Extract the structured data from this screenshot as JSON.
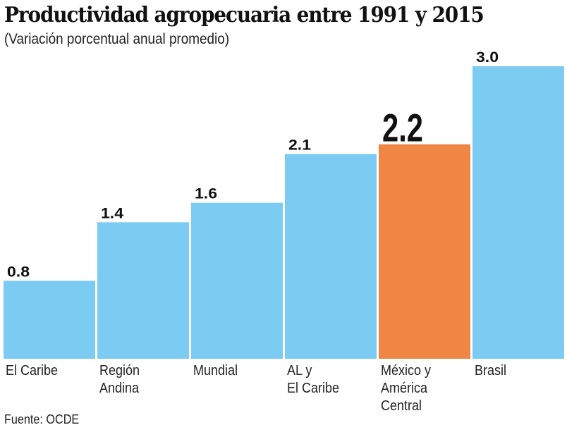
{
  "chart_data": {
    "type": "bar",
    "title": "Productividad agropecuaria entre 1991 y 2015",
    "subtitle": "(Variación porcentual anual promedio)",
    "categories": [
      "El Caribe",
      "Región Andina",
      "Mundial",
      "AL y El Caribe",
      "México y América Central",
      "Brasil"
    ],
    "category_lines": [
      [
        "El Caribe"
      ],
      [
        "Región",
        "Andina"
      ],
      [
        "Mundial"
      ],
      [
        "AL y",
        "El Caribe"
      ],
      [
        "México y",
        "América",
        "Central"
      ],
      [
        "Brasil"
      ]
    ],
    "values": [
      0.8,
      1.4,
      1.6,
      2.1,
      2.2,
      3.0
    ],
    "value_labels": [
      "0.8",
      "1.4",
      "1.6",
      "2.1",
      "2.2",
      "3.0"
    ],
    "highlight_index": 4,
    "colors": {
      "default": "#7ccbf3",
      "highlight": "#f08644"
    },
    "ylim": [
      0,
      3.0
    ],
    "grid": false,
    "legend": "none",
    "source": "Fuente: OCDE"
  }
}
